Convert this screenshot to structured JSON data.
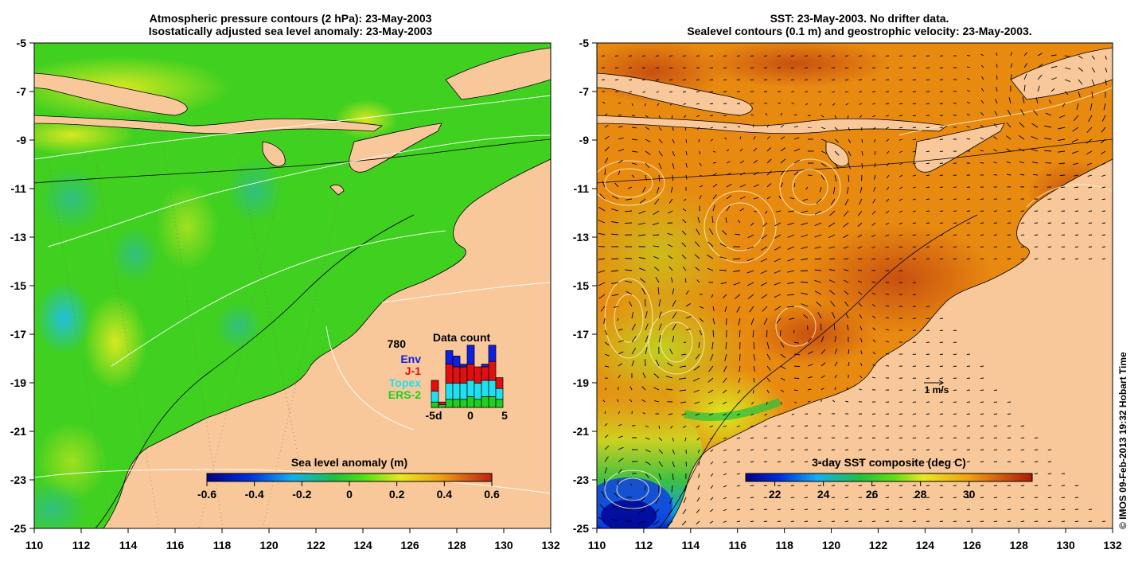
{
  "left_panel": {
    "title_line1": "Atmospheric pressure contours (2 hPa): 23-May-2003",
    "title_line2": "Isostatically adjusted sea level anomaly: 23-May-2003",
    "colorbar": {
      "label": "Sea level anomaly (m)",
      "ticks": [
        "-0.6",
        "-0.4",
        "-0.2",
        "0",
        "0.2",
        "0.4",
        "0.6"
      ]
    },
    "data_count": {
      "title": "Data count",
      "total": "780",
      "legend": [
        {
          "name": "Env",
          "color": "#1020e0"
        },
        {
          "name": "J-1",
          "color": "#e01010"
        },
        {
          "name": "Topex",
          "color": "#20e0f0"
        },
        {
          "name": "ERS-2",
          "color": "#20d020"
        }
      ],
      "x_ticks": [
        "-5d",
        "0",
        "5"
      ],
      "bars": [
        {
          "ers2": 2,
          "topex": 4,
          "j1": 4,
          "env": 0
        },
        {
          "ers2": 1,
          "topex": 0,
          "j1": 1,
          "env": 0
        },
        {
          "ers2": 3,
          "topex": 6,
          "j1": 7,
          "env": 5
        },
        {
          "ers2": 3,
          "topex": 6,
          "j1": 6,
          "env": 4
        },
        {
          "ers2": 3,
          "topex": 6,
          "j1": 6,
          "env": 1
        },
        {
          "ers2": 4,
          "topex": 6,
          "j1": 6,
          "env": 7
        },
        {
          "ers2": 3,
          "topex": 6,
          "j1": 6,
          "env": 0
        },
        {
          "ers2": 4,
          "topex": 6,
          "j1": 5,
          "env": 1
        },
        {
          "ers2": 4,
          "topex": 6,
          "j1": 7,
          "env": 6
        },
        {
          "ers2": 3,
          "topex": 4,
          "j1": 4,
          "env": 0
        }
      ]
    }
  },
  "right_panel": {
    "title_line1": "SST: 23-May-2003. No drifter data.",
    "title_line2": "Sealevel contours (0.1 m) and geostrophic velocity: 23-May-2003.",
    "colorbar": {
      "label": "3-day SST composite (deg C)",
      "ticks": [
        "22",
        "24",
        "26",
        "28",
        "30"
      ]
    },
    "velocity_scale_label": "1 m/s"
  },
  "axes": {
    "y_ticks": [
      "-5",
      "-7",
      "-9",
      "-11",
      "-13",
      "-15",
      "-17",
      "-19",
      "-21",
      "-23",
      "-25"
    ],
    "x_ticks": [
      "110",
      "112",
      "114",
      "116",
      "118",
      "120",
      "122",
      "124",
      "126",
      "128",
      "130",
      "132"
    ]
  },
  "credit": "© IMOS 09-Feb-2013 19:32 Hobart Time",
  "colors": {
    "land": "#f8c89a",
    "sla_background": "#40d020",
    "sst_background": "#e88a10"
  }
}
